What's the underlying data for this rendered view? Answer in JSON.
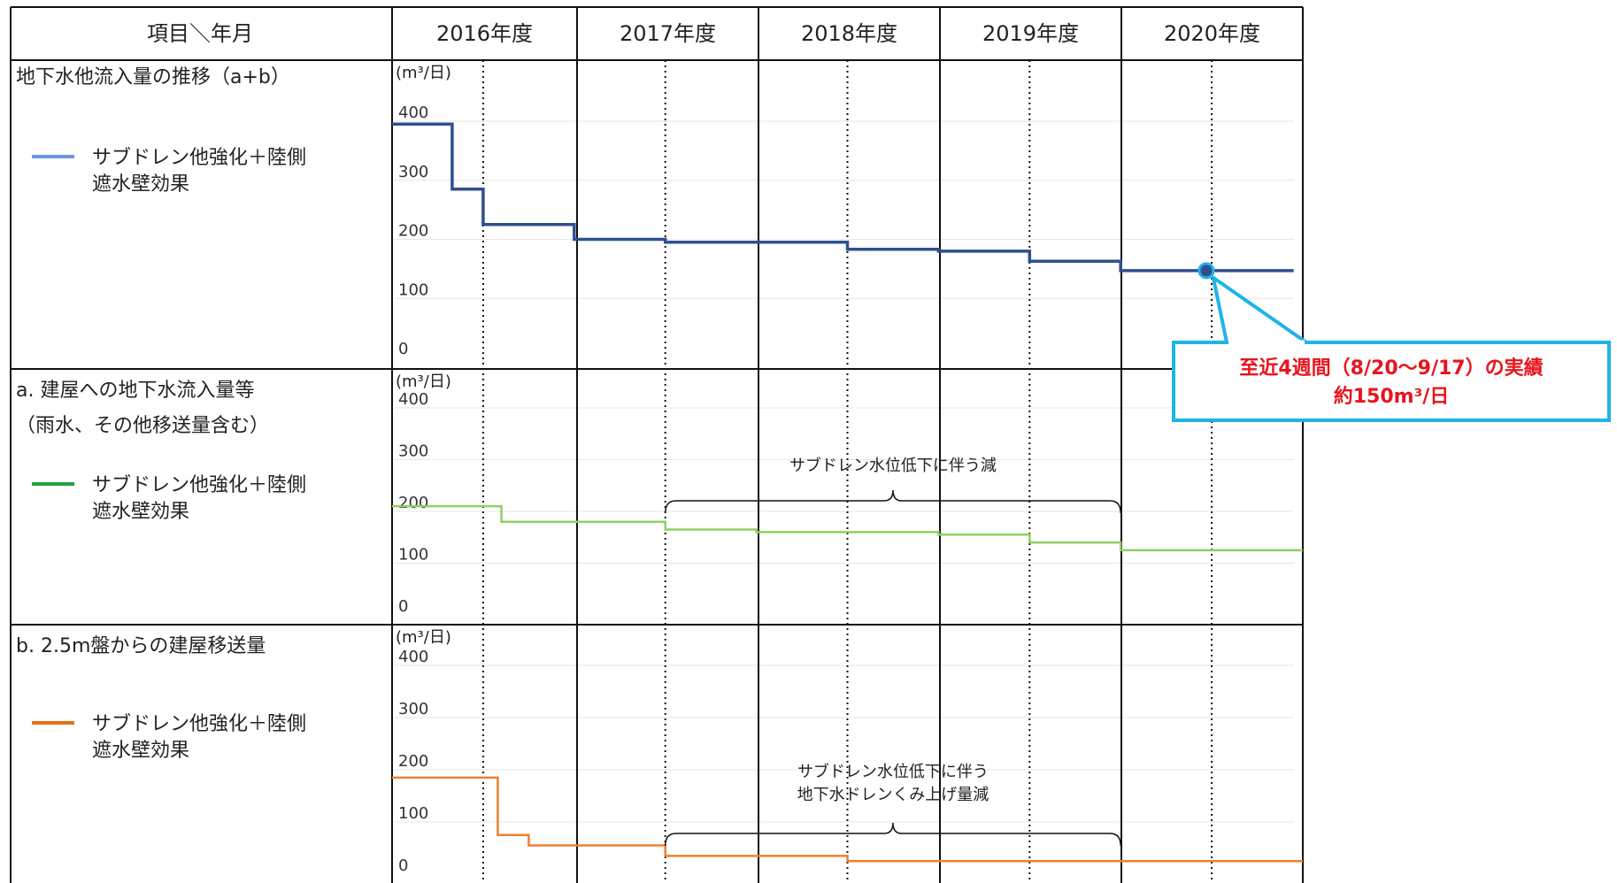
{
  "header": {
    "corner_label": "項目＼年月",
    "years": [
      "2016年度",
      "2017年度",
      "2018年度",
      "2019年度",
      "2020年度"
    ]
  },
  "y_unit_label": "(m³/日)",
  "chart_data": [
    {
      "type": "line",
      "title": "地下水他流入量の推移（a+b）",
      "legend": "サブドレン他強化＋陸側遮水壁効果",
      "legend_lines": [
        "サブドレン他強化＋陸側",
        "遮水壁効果"
      ],
      "color": "#2F4F8F",
      "legend_color": "#6699DD",
      "ylim": [
        0,
        400
      ],
      "yticks": [
        0,
        100,
        200,
        300,
        400
      ],
      "x_range": [
        2016.0,
        2021.0
      ],
      "x_unit": "fiscal year",
      "x": [
        2016.0,
        2016.33,
        2016.33,
        2016.5,
        2016.5,
        2017.0,
        2017.0,
        2017.5,
        2017.5,
        2018.5,
        2018.5,
        2019.0,
        2019.0,
        2019.5,
        2019.5,
        2020.0,
        2020.0,
        2020.47,
        2020.95
      ],
      "values": [
        395,
        395,
        285,
        285,
        225,
        225,
        200,
        200,
        195,
        195,
        183,
        183,
        180,
        180,
        163,
        163,
        147,
        147,
        147
      ],
      "highlight_point": {
        "x": 2020.47,
        "y": 147
      },
      "callout_lines": [
        "至近4週間（8/20〜9/17）の実績",
        "約150m³/日"
      ]
    },
    {
      "type": "line",
      "title": "a. 建屋への地下水流入量等",
      "subtitle": "（雨水、その他移送量含む）",
      "legend": "サブドレン他強化＋陸側遮水壁効果",
      "legend_lines": [
        "サブドレン他強化＋陸側",
        "遮水壁効果"
      ],
      "color": "#90D060",
      "legend_color": "#22A040",
      "ylim": [
        0,
        400
      ],
      "yticks": [
        0,
        100,
        200,
        300,
        400
      ],
      "x_range": [
        2016.0,
        2021.0
      ],
      "x_unit": "fiscal year",
      "x": [
        2016.0,
        2016.6,
        2016.6,
        2017.5,
        2017.5,
        2018.0,
        2018.0,
        2019.0,
        2019.0,
        2019.5,
        2019.5,
        2020.0,
        2020.0,
        2021.0
      ],
      "values": [
        210,
        210,
        180,
        180,
        165,
        165,
        160,
        160,
        155,
        155,
        140,
        140,
        125,
        125
      ],
      "annotation": "サブドレン水位低下に伴う減",
      "annotation_span": [
        2017.5,
        2020.0
      ]
    },
    {
      "type": "line",
      "title": "b. 2.5m盤からの建屋移送量",
      "legend": "サブドレン他強化＋陸側遮水壁効果",
      "legend_lines": [
        "サブドレン他強化＋陸側",
        "遮水壁効果"
      ],
      "color": "#F08030",
      "legend_color": "#E8701A",
      "ylim": [
        0,
        400
      ],
      "yticks": [
        0,
        100,
        200,
        300,
        400
      ],
      "x_range": [
        2016.0,
        2021.0
      ],
      "x_unit": "fiscal year",
      "x": [
        2016.0,
        2016.58,
        2016.58,
        2016.75,
        2016.75,
        2017.5,
        2017.5,
        2018.5,
        2018.5,
        2021.0
      ],
      "values": [
        185,
        185,
        75,
        75,
        55,
        55,
        35,
        35,
        25,
        25
      ],
      "annotation_lines": [
        "サブドレン水位低下に伴う",
        "地下水ドレンくみ上げ量減"
      ],
      "annotation_span": [
        2017.5,
        2020.0
      ]
    }
  ]
}
